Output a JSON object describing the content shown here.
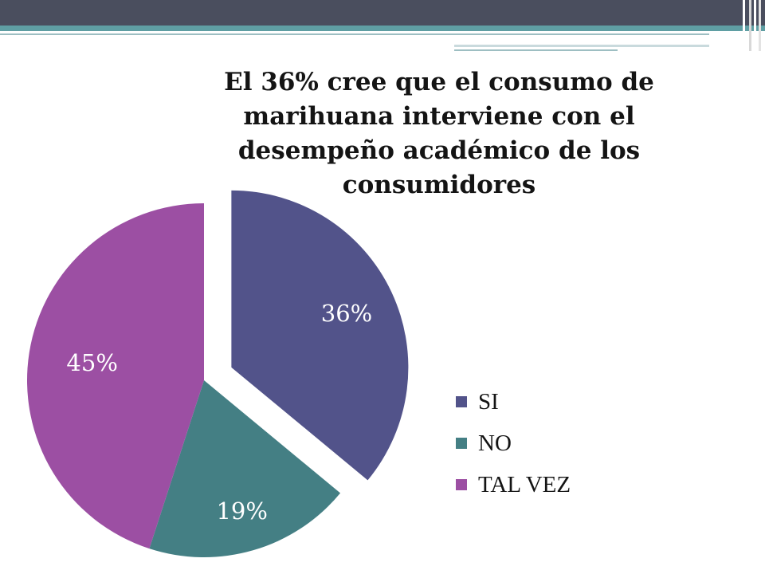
{
  "colors": {
    "si": "#52538a",
    "no": "#447f84",
    "talvez": "#9c4fa3"
  },
  "chart_data": {
    "type": "pie",
    "title": "El 36% cree que el consumo de marihuana interviene con el desempeño académico de los consumidores",
    "slices": [
      {
        "name": "SI",
        "value": 36,
        "label": "36%",
        "color": "#52538a",
        "exploded": true
      },
      {
        "name": "NO",
        "value": 19,
        "label": "19%",
        "color": "#447f84",
        "exploded": false
      },
      {
        "name": "TAL VEZ",
        "value": 45,
        "label": "45%",
        "color": "#9c4fa3",
        "exploded": false
      }
    ],
    "legend_position": "right"
  }
}
